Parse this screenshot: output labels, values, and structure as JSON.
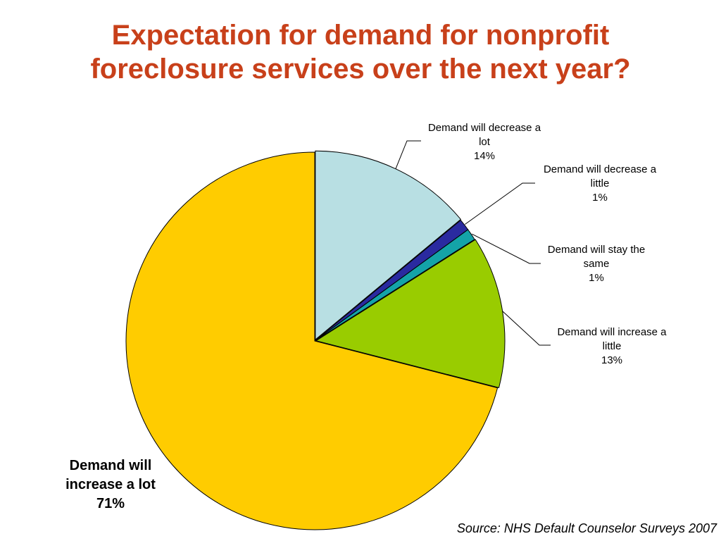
{
  "title_lines": [
    "Expectation for demand for nonprofit",
    "foreclosure services over the next year?"
  ],
  "source": "Source: NHS Default Counselor Surveys 2007",
  "chart_data": {
    "type": "pie",
    "title": "Expectation for demand for nonprofit foreclosure services over the next year?",
    "slices": [
      {
        "label_lines": [
          "Demand will decrease a",
          "lot"
        ],
        "value": 14,
        "value_label": "14%",
        "color": "#b8dfe3"
      },
      {
        "label_lines": [
          "Demand will decrease a",
          "little"
        ],
        "value": 1,
        "value_label": "1%",
        "color": "#2a2aa0"
      },
      {
        "label_lines": [
          "Demand will stay the",
          "same"
        ],
        "value": 1,
        "value_label": "1%",
        "color": "#14a3a8"
      },
      {
        "label_lines": [
          "Demand will increase a",
          "little"
        ],
        "value": 13,
        "value_label": "13%",
        "color": "#99cc00"
      },
      {
        "label_lines": [
          "Demand will",
          "increase a lot"
        ],
        "value": 71,
        "value_label": "71%",
        "color": "#ffcc00"
      }
    ]
  }
}
